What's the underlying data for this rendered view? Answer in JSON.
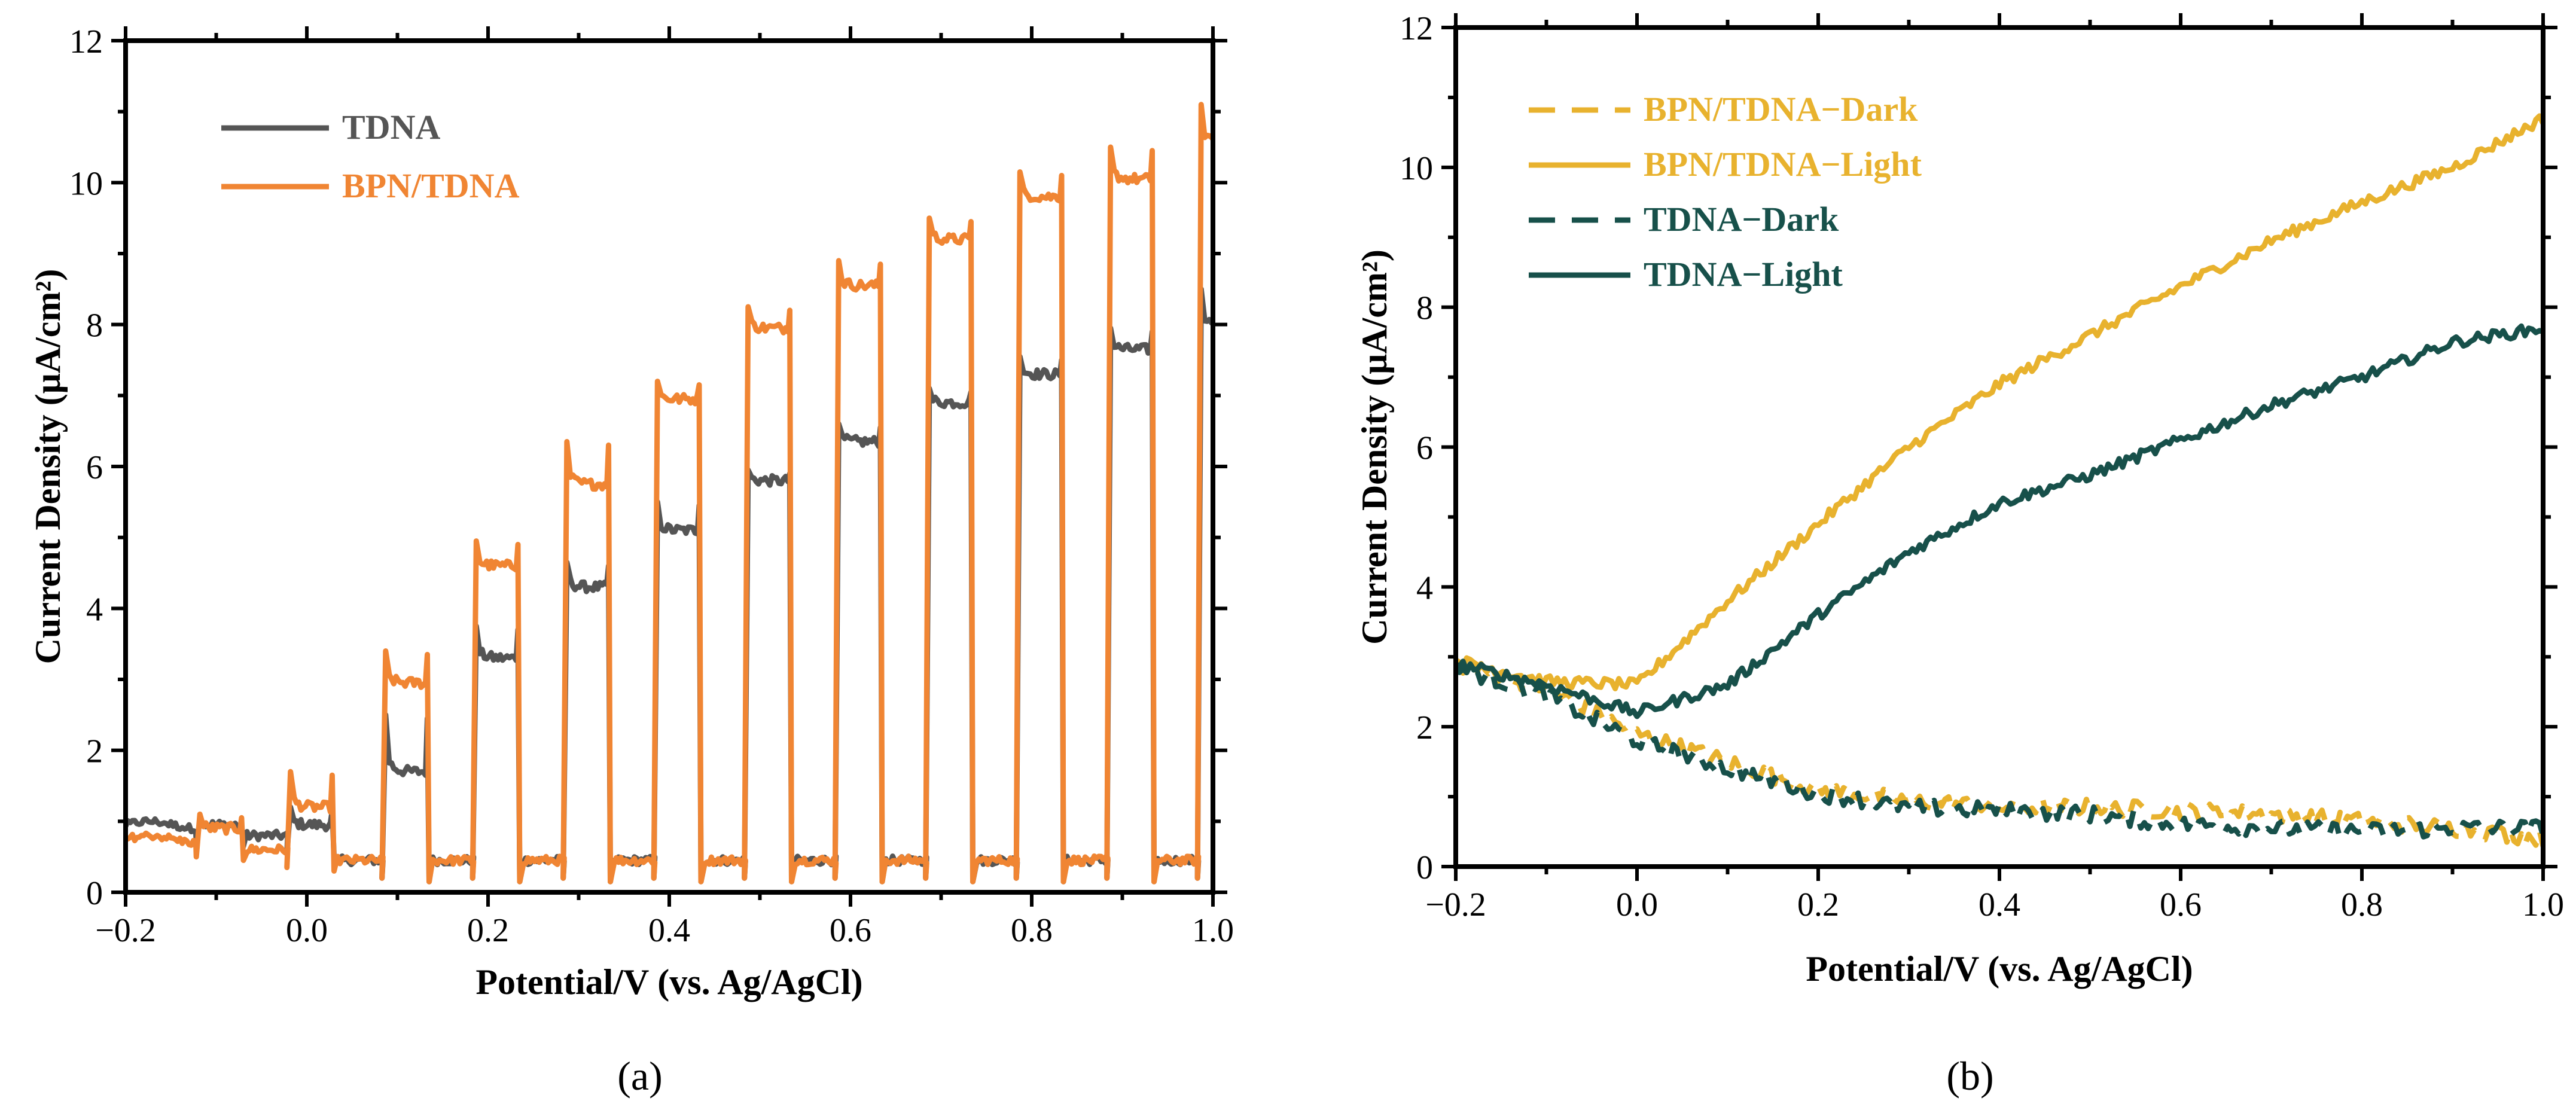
{
  "chart_data": [
    {
      "panel": "a",
      "panel_label": "(a)",
      "type": "line",
      "xlabel": "Potential/V (vs. Ag/AgCl)",
      "ylabel": "Current Density (μA/cm²)",
      "xlim": [
        -0.2,
        1.0
      ],
      "ylim": [
        0,
        12
      ],
      "xticks": [
        -0.2,
        0.0,
        0.2,
        0.4,
        0.6,
        0.8,
        1.0
      ],
      "xtick_labels": [
        "−0.2",
        "0.0",
        "0.2",
        "0.4",
        "0.6",
        "0.8",
        "1.0"
      ],
      "yticks": [
        0,
        2,
        4,
        6,
        8,
        10,
        12
      ],
      "ytick_labels": [
        "0",
        "2",
        "4",
        "6",
        "8",
        "10",
        "12"
      ],
      "legend_position": "top-left",
      "pulses": {
        "on_starts": [
          -0.12,
          -0.02,
          0.085,
          0.185,
          0.285,
          0.385,
          0.485,
          0.585,
          0.685,
          0.785,
          0.885,
          0.985
        ],
        "on_width": 0.048
      },
      "series": [
        {
          "name": "TDNA",
          "color": "#555555",
          "style": "solid",
          "dark_baseline": [
            0.95,
            0.8,
            0.45,
            0.45,
            0.45,
            0.45,
            0.45,
            0.45,
            0.45,
            0.45,
            0.45,
            0.45
          ],
          "light_plateau": [
            0.95,
            0.95,
            1.7,
            3.3,
            4.3,
            5.1,
            5.8,
            6.35,
            6.9,
            7.3,
            7.65,
            8.0
          ],
          "light_spike": [
            1.0,
            1.2,
            2.5,
            3.75,
            4.65,
            5.5,
            5.95,
            6.6,
            7.1,
            7.55,
            7.95,
            8.5
          ]
        },
        {
          "name": "BPN/TDNA",
          "color": "#F08533",
          "style": "solid",
          "dark_baseline": [
            0.75,
            0.6,
            0.45,
            0.45,
            0.45,
            0.45,
            0.45,
            0.45,
            0.45,
            0.45,
            0.45,
            0.45
          ],
          "light_plateau": [
            0.9,
            1.2,
            2.95,
            4.6,
            5.75,
            6.95,
            7.95,
            8.55,
            9.2,
            9.8,
            10.05,
            10.6
          ],
          "light_spike": [
            1.1,
            1.7,
            3.4,
            4.95,
            6.35,
            7.2,
            8.25,
            8.9,
            9.5,
            10.15,
            10.5,
            11.1
          ]
        }
      ]
    },
    {
      "panel": "b",
      "panel_label": "(b)",
      "type": "line",
      "xlabel": "Potential/V (vs. Ag/AgCl)",
      "ylabel": "Current Density (μA/cm²)",
      "xlim": [
        -0.2,
        1.0
      ],
      "ylim": [
        0,
        12
      ],
      "xticks": [
        -0.2,
        0.0,
        0.2,
        0.4,
        0.6,
        0.8,
        1.0
      ],
      "xtick_labels": [
        "−0.2",
        "0.0",
        "0.2",
        "0.4",
        "0.6",
        "0.8",
        "1.0"
      ],
      "yticks": [
        0,
        2,
        4,
        6,
        8,
        10,
        12
      ],
      "ytick_labels": [
        "0",
        "2",
        "4",
        "6",
        "8",
        "10",
        "12"
      ],
      "legend_position": "top-left",
      "series": [
        {
          "name": "BPN/TDNA−Dark",
          "color": "#E8B22E",
          "style": "dashed",
          "x": [
            -0.2,
            -0.1,
            0.0,
            0.1,
            0.2,
            0.3,
            0.4,
            0.5,
            0.6,
            0.7,
            0.8,
            0.9,
            1.0
          ],
          "y": [
            2.9,
            2.55,
            1.9,
            1.5,
            1.1,
            0.95,
            0.85,
            0.85,
            0.8,
            0.75,
            0.65,
            0.55,
            0.4
          ]
        },
        {
          "name": "BPN/TDNA−Light",
          "color": "#E8B22E",
          "style": "solid",
          "x": [
            -0.2,
            -0.1,
            0.0,
            0.1,
            0.2,
            0.3,
            0.4,
            0.5,
            0.6,
            0.7,
            0.8,
            0.9,
            1.0
          ],
          "y": [
            2.95,
            2.65,
            2.6,
            3.8,
            4.9,
            6.0,
            6.9,
            7.6,
            8.3,
            8.95,
            9.5,
            10.0,
            10.7
          ]
        },
        {
          "name": "TDNA−Dark",
          "color": "#17504A",
          "style": "dashed",
          "x": [
            -0.2,
            -0.1,
            0.0,
            0.1,
            0.2,
            0.3,
            0.4,
            0.5,
            0.6,
            0.7,
            0.8,
            0.9,
            1.0
          ],
          "y": [
            2.85,
            2.45,
            1.8,
            1.4,
            1.05,
            0.85,
            0.8,
            0.75,
            0.6,
            0.55,
            0.5,
            0.55,
            0.55
          ]
        },
        {
          "name": "TDNA−Light",
          "color": "#17504A",
          "style": "solid",
          "x": [
            -0.2,
            -0.1,
            0.0,
            0.1,
            0.2,
            0.3,
            0.4,
            0.5,
            0.6,
            0.7,
            0.8,
            0.9,
            1.0
          ],
          "y": [
            2.9,
            2.6,
            2.2,
            2.6,
            3.6,
            4.5,
            5.2,
            5.6,
            6.1,
            6.6,
            7.0,
            7.5,
            7.7
          ]
        }
      ]
    }
  ]
}
